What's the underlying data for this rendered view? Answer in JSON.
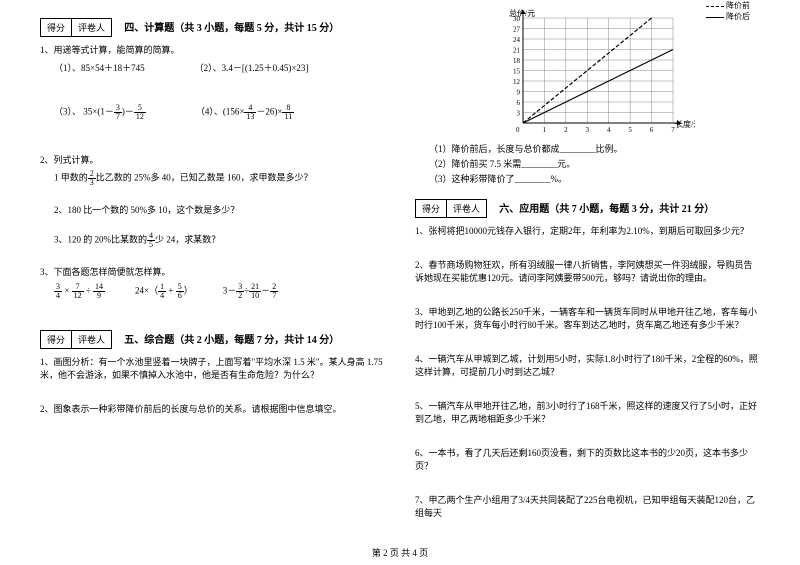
{
  "scorebox": {
    "score": "得分",
    "grader": "评卷人"
  },
  "sections": {
    "s4": {
      "title": "四、计算题（共 3 小题，每题 5 分，共计 15 分）"
    },
    "s5": {
      "title": "五、综合题（共 2 小题，每题 7 分，共计 14 分）"
    },
    "s6": {
      "title": "六、应用题（共 7 小题，每题 3 分，共计 21 分）"
    }
  },
  "q4_1": {
    "stem": "1、用递等式计算，能简算的简算。",
    "a": "（1）、85×54＋18＋745",
    "b": "（2）、3.4－[(1.25＋0.45)×23]",
    "c_pre": "（3）、 35×(1－",
    "c_f1n": "3",
    "c_f1d": "7",
    "c_mid": ")－",
    "c_f2n": "5",
    "c_f2d": "12",
    "d_pre": "（4）、(156×",
    "d_f1n": "4",
    "d_f1d": "13",
    "d_mid": "－26)×",
    "d_f2n": "8",
    "d_f2d": "11"
  },
  "q4_2": {
    "stem": "2、列式计算。",
    "a_pre": "1 甲数的",
    "a_fn": "2",
    "a_fd": "3",
    "a_post": "比乙数的 25%多 40，已知乙数是 160，求甲数是多少？",
    "b": "2、180 比一个数的 50%多 10，这个数是多少？",
    "c_pre": "3、120 的 20%比某数的",
    "c_fn": "4",
    "c_fd": "5",
    "c_post": "少 24，求某数？"
  },
  "q4_3": {
    "stem": "3、下面各题怎样简便就怎样算。",
    "e1_f1n": "3",
    "e1_f1d": "4",
    "e1_op1": " × ",
    "e1_f2n": "7",
    "e1_f2d": "12",
    "e1_op2": " ÷ ",
    "e1_f3n": "14",
    "e1_f3d": "9",
    "e2_pre": "24×（",
    "e2_f1n": "1",
    "e2_f1d": "4",
    "e2_op": " + ",
    "e2_f2n": "5",
    "e2_f2d": "6",
    "e2_post": "）",
    "e3_pre": "3－",
    "e3_f1n": "3",
    "e3_f1d": "2",
    "e3_op1": "÷",
    "e3_f2n": "21",
    "e3_f2d": "10",
    "e3_op2": "－",
    "e3_f3n": "2",
    "e3_f3d": "7"
  },
  "q5_1": "1、画图分析：有一个水池里竖着一块牌子，上面写着\"平均水深 1.5 米\"。某人身高 1.75 米，他不会游泳，如果不慎掉入水池中，他是否有生命危险？为什么？",
  "q5_2": "2、图象表示一种彩带降价前后的长度与总价的关系。请根据图中信息填空。",
  "chart": {
    "ylabel": "总价/元",
    "xlabel": "长度/米",
    "xmax": 7,
    "ymax": 30,
    "xticks": [
      1,
      2,
      3,
      4,
      5,
      6,
      7
    ],
    "yticks": [
      3,
      6,
      9,
      12,
      15,
      18,
      21,
      24,
      27,
      30
    ],
    "grid_color": "#888",
    "line_before": {
      "dash": true,
      "points": [
        [
          0,
          0
        ],
        [
          6,
          30
        ]
      ]
    },
    "line_after": {
      "dash": false,
      "points": [
        [
          0,
          0
        ],
        [
          7,
          21
        ]
      ]
    },
    "legend_before": "降价前",
    "legend_after": "降价后",
    "fill1": "（1）降价前后，长度与总价都成________比例。",
    "fill2": "（2）降价前买 7.5 米需________元。",
    "fill3": "（3）这种彩带降价了________%。"
  },
  "q6": {
    "q1": "1、张柯将把10000元钱存入银行，定期2年，年利率为2.10%，到期后可取回多少元？",
    "q2": "2、春节商场购物狂欢，所有羽绒服一律八折销售，李阿姨想买一件羽绒服，导购员告诉她现在买能优惠120元。请问李阿姨要带500元，够吗？请说出你的理由。",
    "q3": "3、甲地到乙地的公路长250千米，一辆客车和一辆货车同时从甲地开往乙地，客车每小时行100千米，货车每小时行80千米。客车到达乙地时，货车离乙地还有多少千米？",
    "q4": "4、一辆汽车从甲城到乙城，计划用5小时，实际1.8小时行了180千米，2全程的60%，照这样计算，可提前几小时到达乙城？",
    "q5": "5、一辆汽车从甲地开往乙地，前3小时行了168千米，照这样的速度又行了5小时，正好到乙地，甲乙两地相距多少千米？",
    "q6": "6、一本书，看了几天后还剩160页没看，剩下的页数比这本书的少20页，这本书多少页？",
    "q7": "7、甲乙两个生产小组用了3/4天共同装配了225台电视机，已知甲组每天装配120台，乙组每天"
  },
  "footer": "第 2 页 共 4 页"
}
